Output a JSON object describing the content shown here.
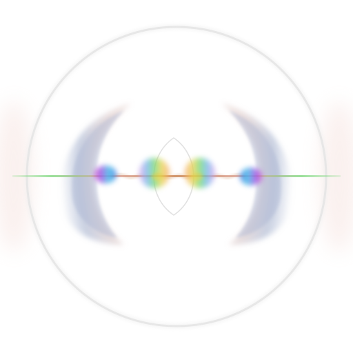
{
  "image": {
    "subject": "abstract-lens-flare",
    "colors": {
      "background": "#ffffff",
      "ring": "#dcdcdc",
      "wing_blue": "#9aa8c8",
      "wing_rose": "#e7c9c0",
      "streak_green": "#7bd67a",
      "streak_rose": "#e0a6a0",
      "streak_orange": "#c7804d",
      "blob_magenta": "#d94fd0",
      "blob_cyan": "#3fc2e8",
      "blob_yellow": "#f0d34a",
      "blob_green": "#6ad86a",
      "blob_blue": "#4a6fe6",
      "blob_violet": "#8f5ee6"
    }
  }
}
